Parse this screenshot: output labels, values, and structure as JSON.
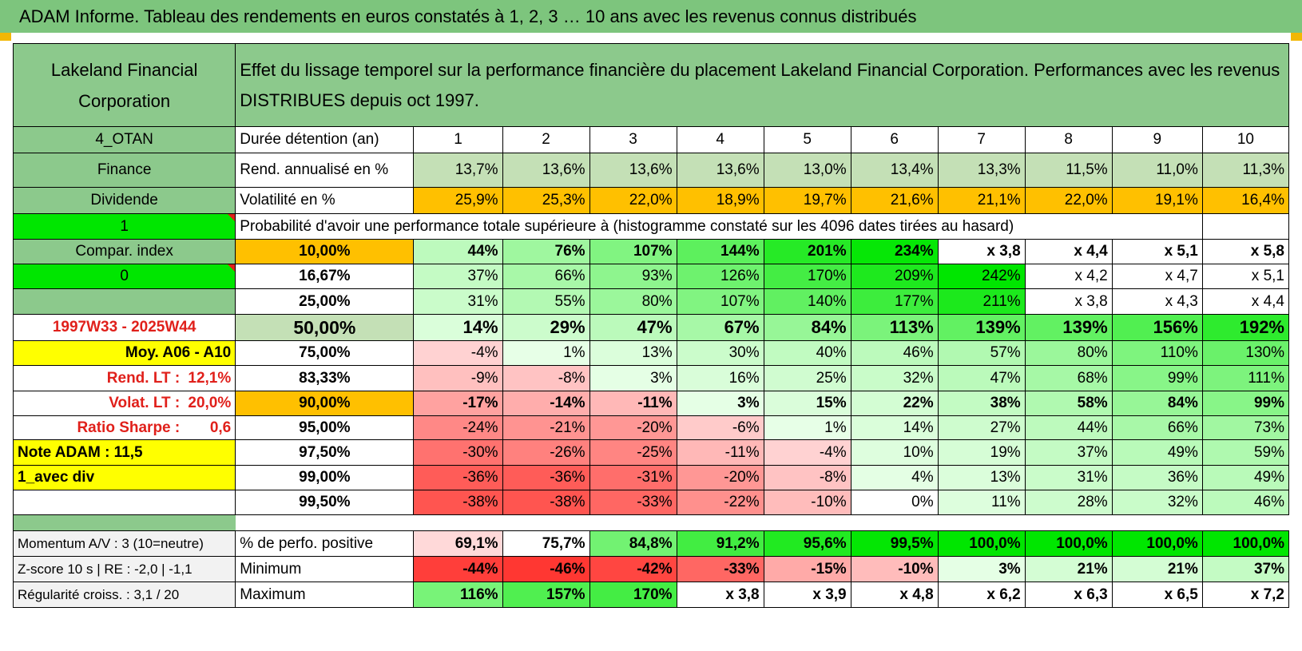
{
  "header": {
    "title": "ADAM Informe. Tableau des rendements en euros constatés à 1, 2, 3 … 10 ans avec les revenus connus distribués"
  },
  "corner": {
    "name": "Lakeland Financial Corporation"
  },
  "caption": "Effet du lissage temporel sur la performance financière du placement Lakeland Financial Corporation. Performances avec les revenus DISTRIBUES depuis oct 1997.",
  "rows": [
    {
      "left": "4_OTAN",
      "label": "Durée détention (an)",
      "values": [
        "1",
        "2",
        "3",
        "4",
        "5",
        "6",
        "7",
        "8",
        "9",
        "10"
      ]
    },
    {
      "left": "Finance",
      "label": "Rend. annualisé en %",
      "values": [
        "13,7%",
        "13,6%",
        "13,6%",
        "13,6%",
        "13,0%",
        "13,4%",
        "13,3%",
        "11,5%",
        "11,0%",
        "11,3%"
      ]
    },
    {
      "left": "Dividende",
      "label": "Volatilité en %",
      "values": [
        "25,9%",
        "25,3%",
        "22,0%",
        "18,9%",
        "19,7%",
        "21,6%",
        "21,1%",
        "22,0%",
        "19,1%",
        "16,4%"
      ]
    }
  ],
  "prob_row": {
    "left": "1",
    "text": "Probabilité d'avoir une performance totale supérieure à (histogramme constaté sur les 4096 dates tirées au hasard)"
  },
  "percentiles": [
    {
      "left": "Compar. index",
      "pct": "10,00%",
      "values": [
        "44%",
        "76%",
        "107%",
        "144%",
        "201%",
        "234%",
        "x 3,8",
        "x 4,4",
        "x 5,1",
        "x 5,8"
      ]
    },
    {
      "left": "0",
      "pct": "16,67%",
      "values": [
        "37%",
        "66%",
        "93%",
        "126%",
        "170%",
        "209%",
        "242%",
        "x 4,2",
        "x 4,7",
        "x 5,1"
      ]
    },
    {
      "left": "",
      "pct": "25,00%",
      "values": [
        "31%",
        "55%",
        "80%",
        "107%",
        "140%",
        "177%",
        "211%",
        "x 3,8",
        "x 4,3",
        "x 4,4"
      ]
    },
    {
      "left": "1997W33 - 2025W44",
      "pct": "50,00%",
      "values": [
        "14%",
        "29%",
        "47%",
        "67%",
        "84%",
        "113%",
        "139%",
        "139%",
        "156%",
        "192%"
      ]
    },
    {
      "left": "Moy. A06 - A10",
      "pct": "75,00%",
      "values": [
        "-4%",
        "1%",
        "13%",
        "30%",
        "40%",
        "46%",
        "57%",
        "80%",
        "110%",
        "130%"
      ]
    },
    {
      "left": "Rend. LT :",
      "left_val": "12,1%",
      "pct": "83,33%",
      "values": [
        "-9%",
        "-8%",
        "3%",
        "16%",
        "25%",
        "32%",
        "47%",
        "68%",
        "99%",
        "111%"
      ]
    },
    {
      "left": "Volat. LT :",
      "left_val": "20,0%",
      "pct": "90,00%",
      "values": [
        "-17%",
        "-14%",
        "-11%",
        "3%",
        "15%",
        "22%",
        "38%",
        "58%",
        "84%",
        "99%"
      ]
    },
    {
      "left": "Ratio Sharpe :",
      "left_val": "0,6",
      "pct": "95,00%",
      "values": [
        "-24%",
        "-21%",
        "-20%",
        "-6%",
        "1%",
        "14%",
        "27%",
        "44%",
        "66%",
        "73%"
      ]
    },
    {
      "left": "Note ADAM : 11,5",
      "pct": "97,50%",
      "values": [
        "-30%",
        "-26%",
        "-25%",
        "-11%",
        "-4%",
        "10%",
        "19%",
        "37%",
        "49%",
        "59%"
      ]
    },
    {
      "left": "1_avec div",
      "pct": "99,00%",
      "values": [
        "-36%",
        "-36%",
        "-31%",
        "-20%",
        "-8%",
        "4%",
        "13%",
        "31%",
        "36%",
        "49%"
      ]
    },
    {
      "left": "",
      "pct": "99,50%",
      "values": [
        "-38%",
        "-38%",
        "-33%",
        "-22%",
        "-10%",
        "0%",
        "11%",
        "28%",
        "32%",
        "46%"
      ]
    }
  ],
  "bottom": [
    {
      "left": "Momentum A/V : 3 (10=neutre)",
      "label": "% de perfo. positive",
      "values": [
        "69,1%",
        "75,7%",
        "84,8%",
        "91,2%",
        "95,6%",
        "99,5%",
        "100,0%",
        "100,0%",
        "100,0%",
        "100,0%"
      ]
    },
    {
      "left": "Z-score 10 s | RE : -2,0 | -1,1",
      "label": "Minimum",
      "values": [
        "-44%",
        "-46%",
        "-42%",
        "-33%",
        "-15%",
        "-10%",
        "3%",
        "21%",
        "21%",
        "37%"
      ]
    },
    {
      "left": "Régularité croiss. : 3,1 / 20",
      "label": "Maximum",
      "values": [
        "116%",
        "157%",
        "170%",
        "x 3,8",
        "x 3,9",
        "x 4,8",
        "x 6,2",
        "x 6,3",
        "x 6,5",
        "x 7,2"
      ]
    }
  ],
  "colors": {
    "header_green": "#7dc57d",
    "cell_green": "#8cc98c",
    "highlight_yellow": "#ffff00",
    "highlight_orange": "#ffc000",
    "bright_green": "#00e600",
    "red_text": "#e0201b"
  }
}
